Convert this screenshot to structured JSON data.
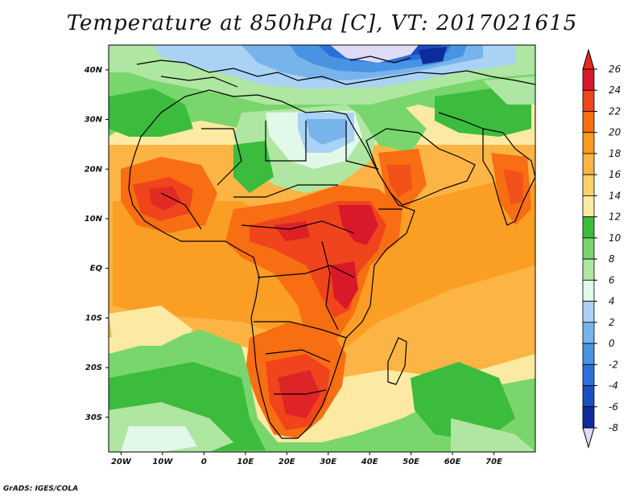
{
  "title": "Temperature at 850hPa [C], VT: 2017021615",
  "footer": "GrADS: IGES/COLA",
  "map": {
    "region": "Africa and Arabian Peninsula",
    "projection": "lat-lon",
    "lon_range": [
      -23,
      80
    ],
    "lat_range": [
      -37,
      45
    ],
    "lon_ticks": [
      "20W",
      "10W",
      "0",
      "10E",
      "20E",
      "30E",
      "40E",
      "50E",
      "60E",
      "70E"
    ],
    "lat_ticks": [
      "40N",
      "30N",
      "20N",
      "10N",
      "EQ",
      "10S",
      "20S",
      "30S"
    ]
  },
  "colorbar": {
    "levels": [
      "26",
      "24",
      "22",
      "20",
      "18",
      "16",
      "14",
      "12",
      "10",
      "8",
      "6",
      "4",
      "2",
      "0",
      "-2",
      "-4",
      "-6",
      "-8"
    ],
    "colors": [
      "#d8192a",
      "#f0441c",
      "#f86e12",
      "#fa9a1e",
      "#fcb444",
      "#fed06a",
      "#fdeaa2",
      "#3cbc3c",
      "#78d66c",
      "#aee6a2",
      "#e2f8e8",
      "#aad2f4",
      "#78b4ec",
      "#4894e2",
      "#2c6edc",
      "#1a4ec0",
      "#0c2c9c",
      "#08126c"
    ],
    "top_color": "#e8281e",
    "bottom_color": "#dcdcf6"
  }
}
